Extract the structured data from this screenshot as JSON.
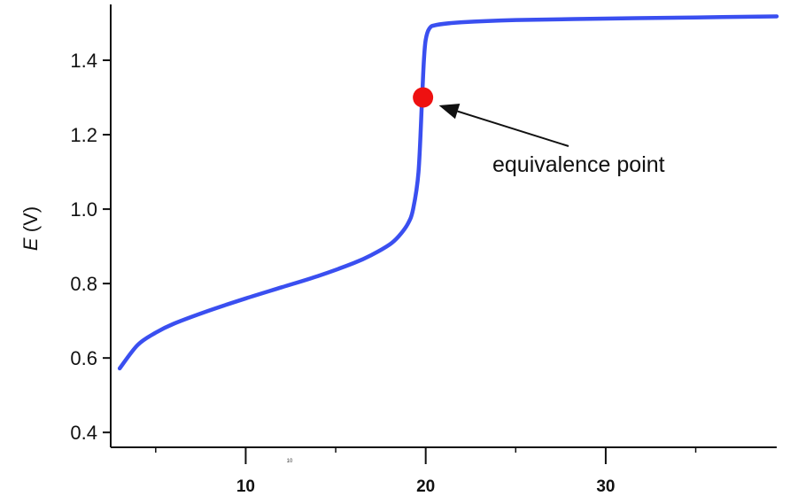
{
  "chart_data": {
    "type": "line",
    "title": "",
    "xlabel": "",
    "ylabel": "E (V)",
    "ylabel_italic_part": "E",
    "ylabel_rest": " (V)",
    "xlim": [
      2.5,
      39.5
    ],
    "ylim": [
      0.36,
      1.55
    ],
    "y_ticks": [
      0.4,
      0.6,
      0.8,
      1.0,
      1.2,
      1.4
    ],
    "y_tick_labels": [
      "0.4",
      "0.6",
      "0.8",
      "1.0",
      "1.2",
      "1.4"
    ],
    "x_ticks": [
      10,
      20,
      30
    ],
    "x_tick_labels": [
      "10",
      "20",
      "30"
    ],
    "x_small_label": "10",
    "grid": false,
    "legend": "none",
    "series": [
      {
        "color": "#3a4ff0",
        "x": [
          3.0,
          4.0,
          5.0,
          6.0,
          8.0,
          10.0,
          12.0,
          14.0,
          16.0,
          17.0,
          18.0,
          18.5,
          19.0,
          19.3,
          19.6,
          19.8,
          19.9,
          20.0,
          20.2,
          20.6,
          22.0,
          25.0,
          30.0,
          35.0,
          39.5
        ],
        "y": [
          0.572,
          0.635,
          0.668,
          0.692,
          0.728,
          0.76,
          0.79,
          0.82,
          0.855,
          0.877,
          0.905,
          0.927,
          0.96,
          1.0,
          1.1,
          1.3,
          1.4,
          1.455,
          1.485,
          1.495,
          1.502,
          1.508,
          1.512,
          1.515,
          1.518
        ]
      }
    ],
    "points": [
      {
        "x": 19.85,
        "y": 1.3,
        "color": "#ee1111"
      }
    ],
    "annotations": [
      {
        "text": "equivalence point",
        "target_x": 19.85,
        "target_y": 1.3
      }
    ]
  }
}
